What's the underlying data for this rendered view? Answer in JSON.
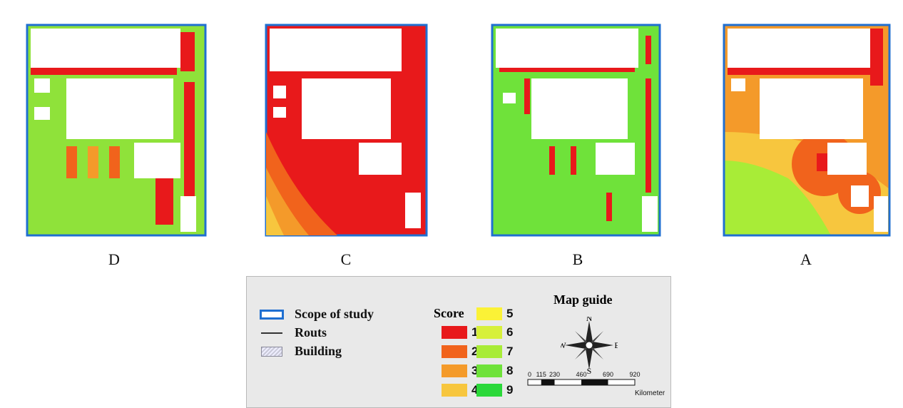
{
  "panels": [
    {
      "label": "D",
      "scheme": "mostly-green"
    },
    {
      "label": "C",
      "scheme": "mostly-red"
    },
    {
      "label": "B",
      "scheme": "green-with-red-strips"
    },
    {
      "label": "A",
      "scheme": "red-orange-green-gradient"
    }
  ],
  "legend": {
    "items": [
      {
        "label": "Scope of study",
        "icon": "scope-rectangle-icon"
      },
      {
        "label": "Routs",
        "icon": "route-line-icon"
      },
      {
        "label": "Building",
        "icon": "hatched-building-icon"
      }
    ],
    "score_title": "Score",
    "scores": [
      {
        "value": "1",
        "color": "#e8191b"
      },
      {
        "value": "2",
        "color": "#f1631c"
      },
      {
        "value": "3",
        "color": "#f49a2a"
      },
      {
        "value": "4",
        "color": "#f7c63e"
      },
      {
        "value": "5",
        "color": "#fbf236"
      },
      {
        "value": "6",
        "color": "#d7f03a"
      },
      {
        "value": "7",
        "color": "#a8ec37"
      },
      {
        "value": "8",
        "color": "#6fe23a"
      },
      {
        "value": "9",
        "color": "#2bd83a"
      }
    ],
    "map_guide": {
      "title": "Map guide",
      "compass": {
        "n": "N",
        "s": "S",
        "e": "E",
        "w": "W"
      },
      "scale_ticks": [
        "0",
        "115",
        "230",
        "460",
        "690",
        "920"
      ],
      "scale_unit": "Kilometer"
    }
  }
}
